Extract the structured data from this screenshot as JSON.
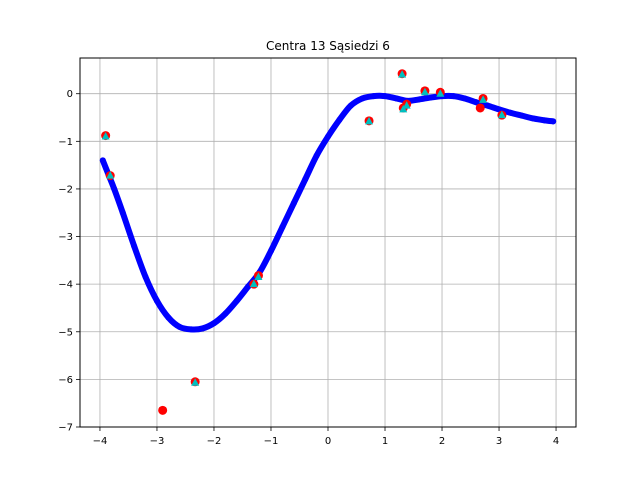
{
  "chart_data": {
    "type": "scatter",
    "title": "Centra 13 Sąsiedzi 6",
    "xlabel": "",
    "ylabel": "",
    "xlim": [
      -4.35,
      4.35
    ],
    "ylim": [
      -7.0,
      0.75
    ],
    "grid": true,
    "xticks": [
      -4,
      -3,
      -2,
      -1,
      0,
      1,
      2,
      3,
      4
    ],
    "yticks": [
      -7,
      -6,
      -5,
      -4,
      -3,
      -2,
      -1,
      0
    ],
    "colors": {
      "curve": "#0000ff",
      "actual": "#ff0000",
      "predicted": "#00bfbf",
      "grid": "#b0b0b0"
    },
    "series": [
      {
        "name": "fitted-curve",
        "color": "#0000ff",
        "x": [
          -3.95,
          -3.85,
          -3.75,
          -3.6,
          -3.4,
          -3.2,
          -3.0,
          -2.8,
          -2.6,
          -2.4,
          -2.2,
          -2.0,
          -1.8,
          -1.6,
          -1.4,
          -1.2,
          -1.0,
          -0.8,
          -0.6,
          -0.4,
          -0.2,
          0.0,
          0.2,
          0.4,
          0.6,
          0.8,
          1.0,
          1.2,
          1.4,
          1.6,
          1.8,
          2.0,
          2.2,
          2.4,
          2.6,
          2.8,
          3.0,
          3.2,
          3.4,
          3.6,
          3.8,
          3.95
        ],
        "y": [
          -1.4,
          -1.7,
          -2.0,
          -2.5,
          -3.2,
          -3.85,
          -4.35,
          -4.7,
          -4.9,
          -4.95,
          -4.93,
          -4.82,
          -4.62,
          -4.35,
          -4.05,
          -3.75,
          -3.3,
          -2.8,
          -2.3,
          -1.8,
          -1.3,
          -0.9,
          -0.55,
          -0.25,
          -0.1,
          -0.05,
          -0.05,
          -0.1,
          -0.15,
          -0.12,
          -0.08,
          -0.05,
          -0.05,
          -0.1,
          -0.18,
          -0.25,
          -0.33,
          -0.4,
          -0.46,
          -0.52,
          -0.56,
          -0.58
        ]
      },
      {
        "name": "actual-points",
        "color": "#ff0000",
        "x": [
          -3.9,
          -3.82,
          -2.9,
          -2.33,
          -1.3,
          -1.22,
          0.72,
          1.3,
          1.32,
          1.38,
          1.7,
          1.97,
          2.67,
          2.72,
          3.05
        ],
        "y": [
          -0.88,
          -1.72,
          -6.65,
          -6.05,
          -4.0,
          -3.82,
          -0.57,
          0.42,
          -0.3,
          -0.22,
          0.06,
          0.03,
          -0.3,
          -0.1,
          -0.45
        ]
      },
      {
        "name": "predicted-points",
        "color": "#00bfbf",
        "x": [
          -3.9,
          -3.82,
          -2.33,
          -1.3,
          -1.22,
          0.72,
          1.3,
          1.32,
          1.38,
          1.7,
          1.97,
          2.72,
          3.05
        ],
        "y": [
          -0.9,
          -1.72,
          -6.07,
          -4.0,
          -3.85,
          -0.58,
          0.4,
          -0.33,
          -0.25,
          0.03,
          0.0,
          -0.13,
          -0.45
        ]
      }
    ]
  }
}
